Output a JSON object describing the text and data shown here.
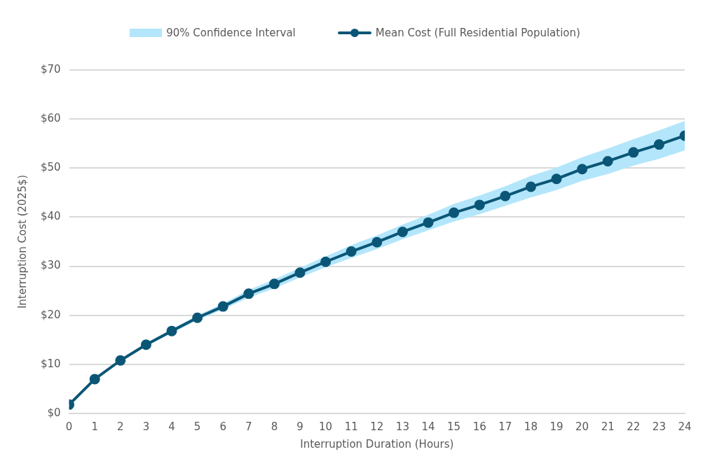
{
  "chart_data": {
    "type": "line",
    "xlabel": "Interruption Duration (Hours)",
    "ylabel": "Interruption Cost (2025$)",
    "annotations": [
      "90% Confidence Interval"
    ],
    "x": [
      0,
      1,
      2,
      3,
      4,
      5,
      6,
      7,
      8,
      9,
      10,
      11,
      12,
      13,
      14,
      15,
      16,
      17,
      18,
      19,
      20,
      21,
      22,
      23,
      24
    ],
    "series": [
      {
        "name": "Mean Cost (Full Residential Population)",
        "color": "#0b5676",
        "values": [
          1.8,
          7.0,
          10.8,
          14.0,
          16.8,
          19.5,
          21.8,
          24.4,
          26.4,
          28.7,
          30.9,
          33.0,
          34.9,
          37.0,
          38.9,
          40.9,
          42.5,
          44.3,
          46.2,
          47.8,
          49.8,
          51.4,
          53.2,
          54.8,
          56.6
        ],
        "lower": [
          1.8,
          6.9,
          10.6,
          13.7,
          16.4,
          19.0,
          21.2,
          23.6,
          25.5,
          27.7,
          29.8,
          31.7,
          33.5,
          35.5,
          37.3,
          39.1,
          40.6,
          42.3,
          44.0,
          45.5,
          47.4,
          48.8,
          50.5,
          51.9,
          53.6
        ],
        "upper": [
          1.8,
          7.1,
          11.0,
          14.3,
          17.2,
          20.0,
          22.4,
          25.2,
          27.3,
          29.7,
          32.0,
          34.3,
          36.3,
          38.5,
          40.5,
          42.7,
          44.4,
          46.3,
          48.4,
          50.1,
          52.2,
          54.0,
          55.9,
          57.7,
          59.6
        ]
      }
    ],
    "xlim": [
      0,
      24
    ],
    "xticks": [
      0,
      1,
      2,
      3,
      4,
      5,
      6,
      7,
      8,
      9,
      10,
      11,
      12,
      13,
      14,
      15,
      16,
      17,
      18,
      19,
      20,
      21,
      22,
      23,
      24
    ],
    "ylim": [
      0,
      70
    ],
    "yticks": [
      {
        "value": 0,
        "label": "$0"
      },
      {
        "value": 10,
        "label": "$10"
      },
      {
        "value": 20,
        "label": "$20"
      },
      {
        "value": 30,
        "label": "$30"
      },
      {
        "value": 40,
        "label": "$40"
      },
      {
        "value": 50,
        "label": "$50"
      },
      {
        "value": 60,
        "label": "$60"
      },
      {
        "value": 70,
        "label": "$70"
      }
    ],
    "grid": "y",
    "legend": "top",
    "marker": "circle",
    "line_style": "solid"
  }
}
